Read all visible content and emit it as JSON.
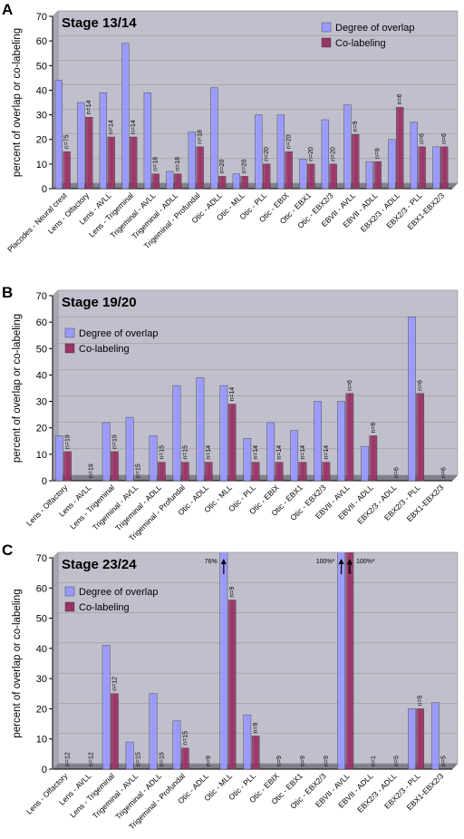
{
  "chart_data": [
    {
      "type": "bar",
      "panel": "A",
      "title": "Stage 13/14",
      "y_label": "percent of overlap or co-labeling",
      "ylim": [
        0,
        70
      ],
      "yticks": [
        0,
        10,
        20,
        30,
        40,
        50,
        60,
        70
      ],
      "legend": "top-right",
      "categories": [
        "Placodes - Neural crest",
        "Lens - Olfactory",
        "Lens - AVLL",
        "Lens - Trigeminal",
        "Trigeminal - AVLL",
        "Trigeminal - ADLL",
        "Trigeminal - Profundal",
        "Otic - ADLL",
        "Otic - MLL",
        "Otic - PLL",
        "Otic - EBIX",
        "Otic - EBX1",
        "Otic - EBX2/3",
        "EBVII - AVLL",
        "EBVII - ADLL",
        "EBX2/3 - ADLL",
        "EBX2/3 - PLL",
        "EBX1-EBX2/3"
      ],
      "series": [
        {
          "name": "Degree of overlap",
          "color": "#9999ff",
          "values": [
            44,
            35,
            39,
            59,
            39,
            7,
            23,
            41,
            6,
            30,
            30,
            12,
            28,
            34,
            11,
            20,
            27,
            17
          ]
        },
        {
          "name": "Co-labeling",
          "color": "#993366",
          "values": [
            15,
            29,
            21,
            21,
            6,
            6,
            17,
            5,
            5,
            10,
            15,
            10,
            10,
            22,
            11,
            33,
            17,
            17
          ]
        }
      ],
      "n_labels": [
        "n=75",
        "n=14",
        "n=14",
        "n=14",
        "n=18",
        "n=18",
        "n=18",
        "n=20",
        "n=20",
        "n=20",
        "n=20",
        "n=20",
        "n=20",
        "n=9",
        "n=9",
        "n=6",
        "n=6",
        "n=6"
      ]
    },
    {
      "type": "bar",
      "panel": "B",
      "title": "Stage 19/20",
      "y_label": "percent of overlap or co-labeling",
      "ylim": [
        0,
        70
      ],
      "yticks": [
        0,
        10,
        20,
        30,
        40,
        50,
        60,
        70
      ],
      "legend": "top-left",
      "categories": [
        "Lens - Olfactory",
        "Lens - AVLL",
        "Lens - Trigeminal",
        "Trigeminal - AVLL",
        "Trigeminal - ADLL",
        "Trigeminal - Profundal",
        "Otic - ADLL",
        "Otic - MLL",
        "Otic - PLL",
        "Otic - EBIX",
        "Otic - EBX1",
        "Otic - EBX2/3",
        "EBVII - AVLL",
        "EBVII - ADLL",
        "EBX2/3 - ADLL",
        "EBX2/3 - PLL",
        "EBX1-EBX2/3"
      ],
      "series": [
        {
          "name": "Degree of overlap",
          "color": "#9999ff",
          "values": [
            17,
            0,
            22,
            24,
            17,
            36,
            39,
            36,
            16,
            22,
            19,
            30,
            30,
            13,
            0,
            62,
            0
          ]
        },
        {
          "name": "Co-labeling",
          "color": "#993366",
          "values": [
            11,
            0,
            11,
            0,
            7,
            7,
            7,
            29,
            7,
            7,
            7,
            7,
            33,
            17,
            0,
            33,
            0
          ]
        }
      ],
      "n_labels": [
        "n=19",
        "n=19",
        "n=19",
        "n=15",
        "n=15",
        "n=15",
        "n=14",
        "n=14",
        "n=14",
        "n=14",
        "n=14",
        "n=14",
        "n=6",
        "n=6",
        "n=6",
        "n=6",
        "n=6"
      ]
    },
    {
      "type": "bar",
      "panel": "C",
      "title": "Stage 23/24",
      "y_label": "percent of overlap or co-labeling",
      "ylim": [
        0,
        70
      ],
      "yticks": [
        0,
        10,
        20,
        30,
        40,
        50,
        60,
        70
      ],
      "legend": "top-left",
      "categories": [
        "Lens - Olfactory",
        "Lens - AVLL",
        "Lens - Trigeminal",
        "Trigeminal - AVLL",
        "Trigeminal - ADLL",
        "Trigeminal - Profundal",
        "Otic - ADLL",
        "Otic - MLL",
        "Otic - PLL",
        "Otic - EBIX",
        "Otic - EBX1",
        "Otic - EBX2/3",
        "EBVII - AVLL",
        "EBVII - ADLL",
        "EBX2/3 - ADLL",
        "EBX2/3 - PLL",
        "EBX1-EBX2/3"
      ],
      "series": [
        {
          "name": "Degree of overlap",
          "color": "#9999ff",
          "values": [
            0,
            0,
            41,
            9,
            25,
            16,
            0,
            76,
            18,
            0,
            0,
            0,
            100,
            0,
            0,
            20,
            22
          ],
          "value_labels": [
            null,
            null,
            null,
            null,
            null,
            null,
            null,
            "76%",
            null,
            null,
            null,
            null,
            "100%*",
            null,
            null,
            null,
            null
          ]
        },
        {
          "name": "Co-labeling",
          "color": "#993366",
          "values": [
            0,
            0,
            25,
            0,
            0,
            7,
            0,
            56,
            11,
            0,
            0,
            0,
            100,
            0,
            0,
            20,
            0
          ],
          "value_labels": [
            null,
            null,
            null,
            null,
            null,
            null,
            null,
            null,
            null,
            null,
            null,
            null,
            "100%*",
            null,
            null,
            null,
            null
          ]
        }
      ],
      "n_labels": [
        "n=12",
        "n=12",
        "n=12",
        "n=15",
        "n=15",
        "n=15",
        "n=9",
        "n=9",
        "n=9",
        "n=9",
        "n=9",
        "n=9",
        "n=1",
        "n=1",
        "n=5",
        "n=5",
        "n=5"
      ]
    }
  ]
}
